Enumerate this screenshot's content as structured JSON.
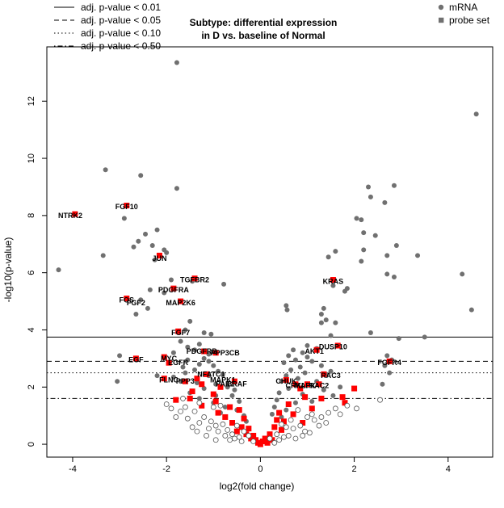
{
  "chart_data": {
    "type": "scatter",
    "title": "Subtype: differential expression\nin D vs. baseline of Normal",
    "xlabel": "log2(fold change)",
    "ylabel": "-log10(p-value)",
    "xlim": [
      -4.55,
      4.95
    ],
    "ylim": [
      -0.45,
      13.9
    ],
    "x_ticks": [
      -4,
      -2,
      0,
      2,
      4
    ],
    "y_ticks": [
      0,
      2,
      4,
      6,
      8,
      10,
      12
    ],
    "grid": false,
    "threshold_lines": [
      {
        "label": "adj. p-value < 0.01",
        "y": 3.75,
        "style": "solid"
      },
      {
        "label": "adj. p-value < 0.05",
        "y": 2.9,
        "style": "dashed"
      },
      {
        "label": "adj. p-value < 0.10",
        "y": 2.5,
        "style": "dotted"
      },
      {
        "label": "adj. p-value < 0.50",
        "y": 1.6,
        "style": "dotdash"
      }
    ],
    "legend_lines_position": "top-left",
    "legend_points_position": "top-right",
    "legend_points": [
      {
        "label": "mRNA",
        "shape": "circle",
        "color": "#707070"
      },
      {
        "label": "probe set",
        "shape": "square",
        "color": "#707070"
      }
    ],
    "colors": {
      "mrna": "#707070",
      "probe": "#ff0000",
      "nonsig_stroke": "#555555",
      "axis": "#000000"
    },
    "series": [
      {
        "name": "mRNA",
        "points": [
          [
            -1.78,
            13.35
          ],
          [
            -1.78,
            8.95
          ],
          [
            -2.55,
            9.4
          ],
          [
            -3.3,
            9.6
          ],
          [
            -2.9,
            7.9
          ],
          [
            -2.45,
            7.35
          ],
          [
            -2.2,
            7.5
          ],
          [
            -2.3,
            6.95
          ],
          [
            -2.6,
            7.1
          ],
          [
            -2.7,
            6.9
          ],
          [
            -2.05,
            6.8
          ],
          [
            -2.0,
            6.7
          ],
          [
            -2.25,
            6.45
          ],
          [
            -3.35,
            6.6
          ],
          [
            -4.3,
            6.1
          ],
          [
            -1.9,
            5.75
          ],
          [
            -2.35,
            5.4
          ],
          [
            -2.55,
            5.05
          ],
          [
            -2.4,
            4.75
          ],
          [
            -2.65,
            4.55
          ],
          [
            -2.05,
            5.3
          ],
          [
            -1.45,
            5.7
          ],
          [
            -0.78,
            5.6
          ],
          [
            -1.5,
            4.3
          ],
          [
            -1.6,
            4.0
          ],
          [
            -1.2,
            3.9
          ],
          [
            -1.05,
            3.85
          ],
          [
            -3.0,
            3.1
          ],
          [
            -3.05,
            2.2
          ],
          [
            -2.2,
            2.4
          ],
          [
            4.6,
            11.55
          ],
          [
            2.3,
            9.0
          ],
          [
            2.35,
            8.65
          ],
          [
            2.85,
            9.05
          ],
          [
            2.65,
            8.45
          ],
          [
            2.05,
            7.9
          ],
          [
            2.15,
            7.85
          ],
          [
            2.2,
            7.4
          ],
          [
            2.45,
            7.3
          ],
          [
            2.9,
            6.95
          ],
          [
            2.2,
            6.8
          ],
          [
            1.6,
            6.75
          ],
          [
            1.45,
            6.55
          ],
          [
            2.7,
            6.6
          ],
          [
            3.35,
            6.6
          ],
          [
            2.15,
            6.4
          ],
          [
            4.3,
            5.95
          ],
          [
            2.7,
            5.95
          ],
          [
            2.85,
            5.85
          ],
          [
            1.85,
            5.45
          ],
          [
            1.8,
            5.35
          ],
          [
            1.55,
            5.55
          ],
          [
            0.55,
            4.85
          ],
          [
            0.57,
            4.7
          ],
          [
            1.35,
            4.75
          ],
          [
            1.3,
            4.55
          ],
          [
            1.4,
            4.35
          ],
          [
            1.3,
            4.25
          ],
          [
            1.6,
            4.25
          ],
          [
            4.5,
            4.7
          ],
          [
            2.35,
            3.9
          ],
          [
            1.5,
            3.8
          ],
          [
            2.95,
            3.7
          ],
          [
            3.5,
            3.75
          ],
          [
            2.7,
            3.1
          ],
          [
            2.8,
            2.95
          ],
          [
            2.65,
            2.75
          ],
          [
            2.75,
            2.5
          ],
          [
            2.6,
            2.1
          ],
          [
            -1.7,
            3.6
          ],
          [
            -1.3,
            3.5
          ],
          [
            -1.55,
            3.4
          ],
          [
            -1.4,
            3.3
          ],
          [
            -1.85,
            3.2
          ],
          [
            -1.1,
            3.15
          ],
          [
            -1.2,
            3.0
          ],
          [
            -1.55,
            2.95
          ],
          [
            -1.3,
            2.8
          ],
          [
            -1.65,
            2.7
          ],
          [
            -1.0,
            2.75
          ],
          [
            -1.4,
            2.6
          ],
          [
            -0.9,
            2.55
          ],
          [
            -1.6,
            2.5
          ],
          [
            -1.1,
            2.4
          ],
          [
            -0.8,
            2.45
          ],
          [
            -1.7,
            2.2
          ],
          [
            -1.35,
            2.15
          ],
          [
            -0.95,
            2.1
          ],
          [
            -0.7,
            2.0
          ],
          [
            -1.2,
            1.95
          ],
          [
            -0.55,
            1.9
          ],
          [
            -1.5,
            1.8
          ],
          [
            -0.95,
            1.7
          ],
          [
            -1.85,
            2.35
          ],
          [
            -0.6,
            1.7
          ],
          [
            -0.45,
            1.5
          ],
          [
            -1.0,
            1.45
          ],
          [
            -0.75,
            1.3
          ],
          [
            -0.5,
            1.2
          ],
          [
            -1.3,
            1.6
          ],
          [
            -0.85,
            1.1
          ],
          [
            -0.35,
            1.0
          ],
          [
            -0.3,
            0.8
          ],
          [
            -1.1,
            2.9
          ],
          [
            0.7,
            3.3
          ],
          [
            0.9,
            3.2
          ],
          [
            1.0,
            3.45
          ],
          [
            1.2,
            3.35
          ],
          [
            0.6,
            3.1
          ],
          [
            0.75,
            2.95
          ],
          [
            1.1,
            2.9
          ],
          [
            0.5,
            2.85
          ],
          [
            0.85,
            2.7
          ],
          [
            1.3,
            2.75
          ],
          [
            0.65,
            2.6
          ],
          [
            0.95,
            2.5
          ],
          [
            1.5,
            2.55
          ],
          [
            0.55,
            2.4
          ],
          [
            0.8,
            2.3
          ],
          [
            1.2,
            2.2
          ],
          [
            0.45,
            2.2
          ],
          [
            1.0,
            2.05
          ],
          [
            0.6,
            1.95
          ],
          [
            1.35,
            1.9
          ],
          [
            0.4,
            1.8
          ],
          [
            0.9,
            1.75
          ],
          [
            1.55,
            1.7
          ],
          [
            0.35,
            1.55
          ],
          [
            0.75,
            1.45
          ],
          [
            0.3,
            1.3
          ],
          [
            0.55,
            1.2
          ],
          [
            1.1,
            1.5
          ],
          [
            0.25,
            1.05
          ],
          [
            0.45,
            0.95
          ],
          [
            1.7,
            2.0
          ],
          [
            1.4,
            2.45
          ],
          [
            1.0,
            3.05
          ]
        ]
      },
      {
        "name": "probe set",
        "points": [
          [
            -2.85,
            8.35
          ],
          [
            -3.95,
            8.05
          ],
          [
            -2.15,
            6.6
          ],
          [
            -1.4,
            5.8
          ],
          [
            -1.85,
            5.45
          ],
          [
            -2.85,
            5.1
          ],
          [
            -1.7,
            5.0
          ],
          [
            -1.75,
            3.95
          ],
          [
            -1.2,
            3.25
          ],
          [
            -0.95,
            3.2
          ],
          [
            -2.65,
            3.0
          ],
          [
            -2.05,
            3.05
          ],
          [
            -1.95,
            2.85
          ],
          [
            -1.15,
            2.45
          ],
          [
            -1.35,
            2.3
          ],
          [
            -1.6,
            2.2
          ],
          [
            -0.55,
            2.2
          ],
          [
            -1.25,
            2.1
          ],
          [
            -2.05,
            2.3
          ],
          [
            -0.85,
            2.0
          ],
          [
            -1.45,
            1.85
          ],
          [
            -1.0,
            1.75
          ],
          [
            -1.8,
            1.55
          ],
          [
            -1.5,
            1.6
          ],
          [
            -0.95,
            1.5
          ],
          [
            -0.65,
            1.3
          ],
          [
            -0.45,
            1.2
          ],
          [
            -0.9,
            1.1
          ],
          [
            -0.35,
            0.9
          ],
          [
            -0.6,
            0.75
          ],
          [
            -0.25,
            0.55
          ],
          [
            -0.15,
            0.3
          ],
          [
            -0.3,
            0.35
          ],
          [
            -0.1,
            0.15
          ],
          [
            -0.05,
            0.05
          ],
          [
            -0.4,
            0.6
          ],
          [
            -0.2,
            0.2
          ],
          [
            -1.25,
            1.35
          ],
          [
            -0.75,
            0.95
          ],
          [
            -0.5,
            0.45
          ],
          [
            1.55,
            5.75
          ],
          [
            1.65,
            3.45
          ],
          [
            1.2,
            3.3
          ],
          [
            1.35,
            2.45
          ],
          [
            0.55,
            2.25
          ],
          [
            0.75,
            2.1
          ],
          [
            1.0,
            2.1
          ],
          [
            1.25,
            2.1
          ],
          [
            0.85,
            1.95
          ],
          [
            1.75,
            1.65
          ],
          [
            2.0,
            1.95
          ],
          [
            2.75,
            2.9
          ],
          [
            1.8,
            1.45
          ],
          [
            0.95,
            1.65
          ],
          [
            1.1,
            1.25
          ],
          [
            0.6,
            1.4
          ],
          [
            0.4,
            1.1
          ],
          [
            0.5,
            0.8
          ],
          [
            0.3,
            0.6
          ],
          [
            0.2,
            0.35
          ],
          [
            0.1,
            0.2
          ],
          [
            0.05,
            0.1
          ],
          [
            0.15,
            0.05
          ],
          [
            0.25,
            0.15
          ],
          [
            0.7,
            1.05
          ],
          [
            0.45,
            0.5
          ],
          [
            0.35,
            0.85
          ],
          [
            1.3,
            1.6
          ],
          [
            0.9,
            0.75
          ],
          [
            0.0,
            0.0
          ]
        ]
      },
      {
        "name": "nonsig",
        "points": [
          [
            -1.6,
            1.3
          ],
          [
            -1.4,
            1.15
          ],
          [
            -1.55,
            0.9
          ],
          [
            -1.2,
            0.95
          ],
          [
            -1.3,
            0.75
          ],
          [
            -1.05,
            0.8
          ],
          [
            -1.45,
            0.6
          ],
          [
            -1.1,
            0.55
          ],
          [
            -0.95,
            0.65
          ],
          [
            -0.8,
            0.7
          ],
          [
            -0.9,
            0.45
          ],
          [
            -0.7,
            0.5
          ],
          [
            -0.75,
            0.3
          ],
          [
            -0.6,
            0.35
          ],
          [
            -0.55,
            0.2
          ],
          [
            -0.45,
            0.25
          ],
          [
            -0.65,
            0.15
          ],
          [
            -0.4,
            0.1
          ],
          [
            -1.7,
            1.15
          ],
          [
            -1.8,
            0.95
          ],
          [
            -2.0,
            1.4
          ],
          [
            -1.65,
            1.6
          ],
          [
            -1.3,
            1.45
          ],
          [
            -1.0,
            1.3
          ],
          [
            -0.85,
            1.35
          ],
          [
            -0.5,
            0.65
          ],
          [
            -0.35,
            0.45
          ],
          [
            -0.25,
            0.3
          ],
          [
            -0.15,
            0.1
          ],
          [
            -1.9,
            1.25
          ],
          [
            -1.15,
            0.3
          ],
          [
            -0.95,
            0.15
          ],
          [
            -1.35,
            0.45
          ],
          [
            1.6,
            1.25
          ],
          [
            1.45,
            1.1
          ],
          [
            1.3,
            0.95
          ],
          [
            1.15,
            0.85
          ],
          [
            1.0,
            0.95
          ],
          [
            0.85,
            0.65
          ],
          [
            0.7,
            0.55
          ],
          [
            0.95,
            0.45
          ],
          [
            0.6,
            0.3
          ],
          [
            0.5,
            0.25
          ],
          [
            0.75,
            0.2
          ],
          [
            0.4,
            0.15
          ],
          [
            0.3,
            0.05
          ],
          [
            1.25,
            0.65
          ],
          [
            1.05,
            0.4
          ],
          [
            0.65,
            0.85
          ],
          [
            0.55,
            0.6
          ],
          [
            0.35,
            0.35
          ],
          [
            1.7,
            1.05
          ],
          [
            1.4,
            0.75
          ],
          [
            1.85,
            1.35
          ],
          [
            2.05,
            1.25
          ],
          [
            2.55,
            1.55
          ],
          [
            1.1,
            1.05
          ],
          [
            0.8,
            1.2
          ],
          [
            0.45,
            0.7
          ],
          [
            0.2,
            0.2
          ],
          [
            0.9,
            0.3
          ]
        ]
      }
    ],
    "annotations": [
      {
        "text": "NTRK2",
        "x": -4.05,
        "y": 8.0
      },
      {
        "text": "FGF10",
        "x": -2.85,
        "y": 8.3
      },
      {
        "text": "JUN",
        "x": -2.15,
        "y": 6.5
      },
      {
        "text": "TGFBR2",
        "x": -1.4,
        "y": 5.75
      },
      {
        "text": "PDGFRA",
        "x": -1.85,
        "y": 5.4
      },
      {
        "text": "FOS",
        "x": -2.85,
        "y": 5.05
      },
      {
        "text": "FGF2",
        "x": -2.65,
        "y": 4.95
      },
      {
        "text": "MAP2K6",
        "x": -1.7,
        "y": 4.95
      },
      {
        "text": "FGF7",
        "x": -1.7,
        "y": 3.9
      },
      {
        "text": "PDGFRB",
        "x": -1.25,
        "y": 3.25
      },
      {
        "text": "PPP3CB",
        "x": -0.75,
        "y": 3.2
      },
      {
        "text": "EGF",
        "x": -2.65,
        "y": 2.95
      },
      {
        "text": "MYC",
        "x": -1.95,
        "y": 3.0
      },
      {
        "text": "EGFR",
        "x": -1.75,
        "y": 2.85
      },
      {
        "text": "NFATC1",
        "x": -1.05,
        "y": 2.45
      },
      {
        "text": "FLNC",
        "x": -1.95,
        "y": 2.25
      },
      {
        "text": "PPP3",
        "x": -1.6,
        "y": 2.2
      },
      {
        "text": "MAPK1",
        "x": -0.8,
        "y": 2.25
      },
      {
        "text": "PAK1",
        "x": -0.75,
        "y": 2.1
      },
      {
        "text": "BRAF",
        "x": -0.5,
        "y": 2.1
      },
      {
        "text": "KRAS",
        "x": 1.55,
        "y": 5.7
      },
      {
        "text": "DUSP10",
        "x": 1.55,
        "y": 3.4
      },
      {
        "text": "AKT1",
        "x": 1.15,
        "y": 3.25
      },
      {
        "text": "FGFR4",
        "x": 2.75,
        "y": 2.85
      },
      {
        "text": "RAC3",
        "x": 1.5,
        "y": 2.4
      },
      {
        "text": "CHUK",
        "x": 0.55,
        "y": 2.2
      },
      {
        "text": "CRKL",
        "x": 0.75,
        "y": 2.05
      },
      {
        "text": "RAC2",
        "x": 1.25,
        "y": 2.05
      },
      {
        "text": "MAPK",
        "x": 0.95,
        "y": 2.05
      }
    ]
  }
}
